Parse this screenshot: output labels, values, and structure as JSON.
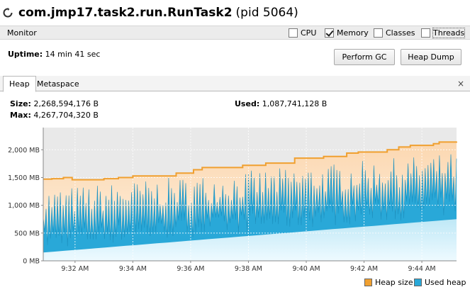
{
  "title": {
    "main": "com.jmp17.task2.run.RunTask2",
    "pid": "(pid 5064)"
  },
  "monitor": {
    "label": "Monitor",
    "checkboxes": [
      {
        "label": "CPU",
        "checked": false
      },
      {
        "label": "Memory",
        "checked": true
      },
      {
        "label": "Classes",
        "checked": false
      },
      {
        "label": "Threads",
        "checked": false
      }
    ]
  },
  "uptime": {
    "label": "Uptime:",
    "value": "14 min 41 sec"
  },
  "buttons": {
    "gc": "Perform GC",
    "dump": "Heap Dump"
  },
  "tabs": [
    {
      "label": "Heap",
      "active": true
    },
    {
      "label": "Metaspace",
      "active": false
    }
  ],
  "tab_close": "×",
  "heap": {
    "size_label": "Size:",
    "size_value": "2,268,594,176 B",
    "max_label": "Max:",
    "max_value": "4,267,704,320 B",
    "used_label": "Used:",
    "used_value": "1,087,741,128 B"
  },
  "colors": {
    "heap_size": "#f0a030",
    "used_heap": "#29a8d8",
    "heap_fill": "#fde1c0",
    "used_fill_low": "#dff4fb"
  },
  "chart_data": {
    "type": "area",
    "y_ticks": [
      "0 MB",
      "500 MB",
      "1,000 MB",
      "1,500 MB",
      "2,000 MB"
    ],
    "y_tick_values": [
      0,
      500,
      1000,
      1500,
      2000
    ],
    "ylim": [
      0,
      2400
    ],
    "x_ticks": [
      "9:32 AM",
      "9:34 AM",
      "9:36 AM",
      "9:38 AM",
      "9:40 AM",
      "9:42 AM",
      "9:44 AM"
    ],
    "x_tick_minutes": [
      32,
      34,
      36,
      38,
      40,
      42,
      44
    ],
    "xlim_minutes": [
      30.9,
      45.2
    ],
    "series": [
      {
        "name": "Heap size",
        "steps": [
          [
            30.9,
            1470
          ],
          [
            31.2,
            1480
          ],
          [
            31.6,
            1500
          ],
          [
            31.9,
            1460
          ],
          [
            33.0,
            1480
          ],
          [
            33.5,
            1500
          ],
          [
            34.0,
            1530
          ],
          [
            35.5,
            1580
          ],
          [
            36.1,
            1640
          ],
          [
            36.4,
            1680
          ],
          [
            37.8,
            1720
          ],
          [
            38.6,
            1760
          ],
          [
            39.6,
            1850
          ],
          [
            40.6,
            1880
          ],
          [
            41.4,
            1940
          ],
          [
            41.8,
            1960
          ],
          [
            42.8,
            2000
          ],
          [
            43.2,
            2050
          ],
          [
            43.6,
            2080
          ],
          [
            44.4,
            2110
          ],
          [
            44.6,
            2140
          ],
          [
            45.2,
            2150
          ]
        ]
      },
      {
        "name": "Used heap",
        "floor_start": 150,
        "floor_end": 750,
        "peak_start": 1300,
        "peak_end": 1950
      }
    ],
    "legend": [
      "Heap size",
      "Used heap"
    ],
    "legend_position": "bottom-right"
  }
}
